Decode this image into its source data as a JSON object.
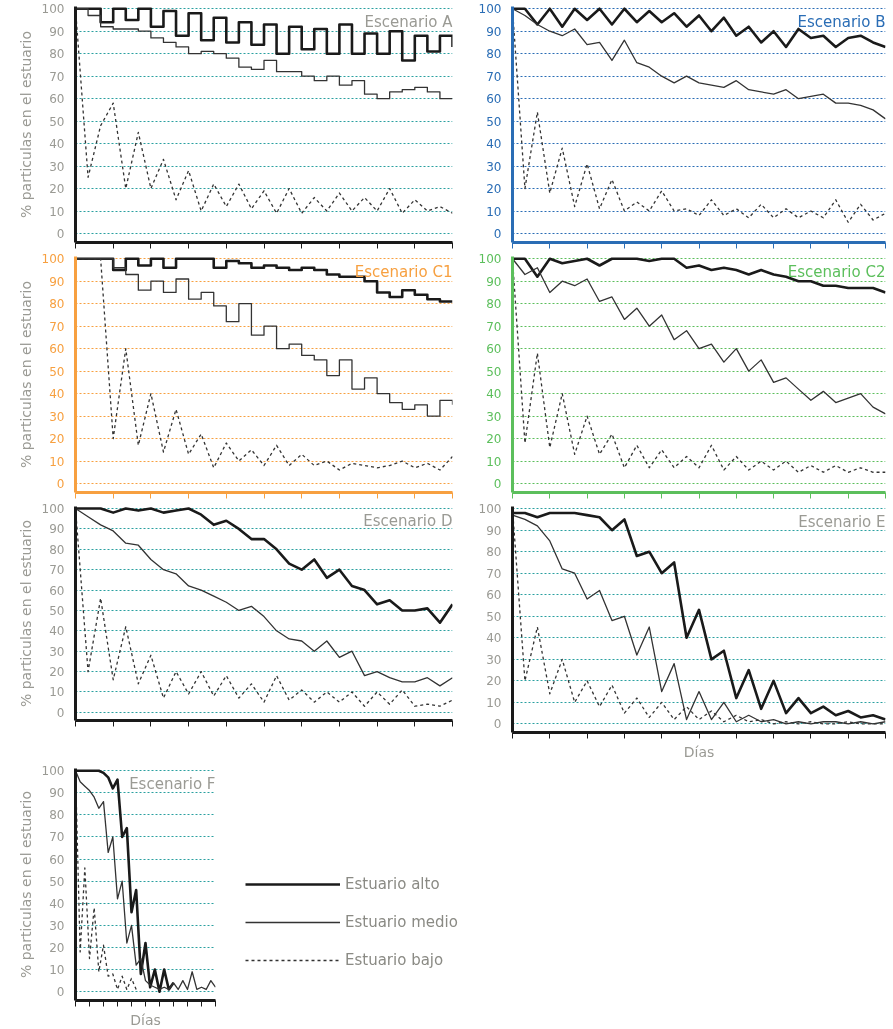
{
  "chart_data": [
    {
      "type": "line",
      "title": "Escenario A",
      "ylabel": "% particulas en el estuario",
      "categories": [
        null,
        null,
        null,
        null,
        null,
        null,
        null,
        null,
        null,
        null,
        null,
        null,
        null,
        null,
        null,
        null,
        null,
        null,
        null,
        null,
        null,
        null,
        null,
        null,
        null,
        null,
        null,
        null,
        null,
        null,
        null
      ],
      "ylim": [
        -4,
        101
      ],
      "yticks": [
        0,
        10,
        20,
        30,
        40,
        50,
        60,
        70,
        80,
        90,
        100
      ],
      "grid": "y",
      "series": [
        {
          "type": "step",
          "color": "#1a1a1a",
          "line_style": "solid",
          "values": [
            100,
            100,
            94,
            100,
            95,
            100,
            92,
            99,
            88,
            98,
            86,
            96,
            85,
            94,
            84,
            93,
            80,
            92,
            82,
            91,
            80,
            93,
            80,
            89,
            80,
            90,
            77,
            88,
            81,
            88,
            83
          ]
        },
        {
          "type": "step",
          "color": "#333333",
          "line_style": "solid",
          "values": [
            100,
            97,
            92,
            91,
            91,
            90,
            87,
            85,
            83,
            80,
            81,
            80,
            78,
            74,
            73,
            77,
            72,
            72,
            70,
            68,
            70,
            66,
            68,
            62,
            60,
            63,
            64,
            65,
            63,
            60,
            60
          ]
        },
        {
          "type": "line",
          "color": "#333333",
          "line_style": "dotted",
          "values": [
            100,
            25,
            48,
            58,
            20,
            45,
            20,
            33,
            15,
            28,
            10,
            22,
            12,
            22,
            11,
            19,
            9,
            20,
            9,
            16,
            10,
            18,
            10,
            16,
            10,
            20,
            9,
            15,
            10,
            12,
            9
          ]
        }
      ]
    },
    {
      "type": "line",
      "title": "Escenario B",
      "categories": [
        null,
        null,
        null,
        null,
        null,
        null,
        null,
        null,
        null,
        null,
        null,
        null,
        null,
        null,
        null,
        null,
        null,
        null,
        null,
        null,
        null,
        null,
        null,
        null,
        null,
        null,
        null,
        null,
        null,
        null,
        null
      ],
      "ylim": [
        -4,
        101
      ],
      "yticks": [
        0,
        10,
        20,
        30,
        40,
        50,
        60,
        70,
        80,
        90,
        100
      ],
      "grid": "y",
      "series": [
        {
          "type": "line",
          "color": "#1a1a1a",
          "line_style": "solid",
          "values": [
            100,
            100,
            93,
            100,
            92,
            100,
            95,
            100,
            93,
            100,
            94,
            99,
            94,
            98,
            92,
            97,
            90,
            96,
            88,
            92,
            85,
            90,
            83,
            91,
            87,
            88,
            83,
            87,
            88,
            85,
            83
          ]
        },
        {
          "type": "line",
          "color": "#333333",
          "line_style": "solid",
          "values": [
            100,
            97,
            93,
            90,
            88,
            91,
            84,
            85,
            77,
            86,
            76,
            74,
            70,
            67,
            70,
            67,
            66,
            65,
            68,
            64,
            63,
            62,
            64,
            60,
            61,
            62,
            58,
            58,
            57,
            55,
            51
          ]
        },
        {
          "type": "line",
          "color": "#333333",
          "line_style": "dotted",
          "values": [
            100,
            20,
            54,
            18,
            38,
            12,
            31,
            11,
            24,
            10,
            14,
            10,
            19,
            10,
            11,
            8,
            15,
            8,
            11,
            7,
            13,
            7,
            11,
            7,
            10,
            7,
            15,
            5,
            13,
            6,
            9
          ]
        }
      ]
    },
    {
      "type": "line",
      "title": "Escenario C1",
      "ylabel": "% particulas en el estuario",
      "categories": [
        null,
        null,
        null,
        null,
        null,
        null,
        null,
        null,
        null,
        null,
        null,
        null,
        null,
        null,
        null,
        null,
        null,
        null,
        null,
        null,
        null,
        null,
        null,
        null,
        null,
        null,
        null,
        null,
        null,
        null,
        null
      ],
      "ylim": [
        -4,
        101
      ],
      "yticks": [
        0,
        10,
        20,
        30,
        40,
        50,
        60,
        70,
        80,
        90,
        100
      ],
      "grid": "y",
      "series": [
        {
          "type": "step",
          "color": "#1a1a1a",
          "line_style": "solid",
          "values": [
            100,
            100,
            100,
            95,
            100,
            97,
            100,
            96,
            100,
            100,
            100,
            96,
            99,
            98,
            96,
            97,
            96,
            95,
            96,
            95,
            93,
            92,
            92,
            90,
            85,
            83,
            86,
            84,
            82,
            81,
            81
          ]
        },
        {
          "type": "step",
          "color": "#333333",
          "line_style": "solid",
          "values": [
            100,
            100,
            100,
            96,
            93,
            86,
            90,
            85,
            91,
            82,
            85,
            79,
            72,
            80,
            66,
            70,
            60,
            62,
            57,
            55,
            48,
            55,
            42,
            47,
            40,
            36,
            33,
            35,
            30,
            37,
            35
          ]
        },
        {
          "type": "line",
          "color": "#333333",
          "line_style": "dotted",
          "values": [
            100,
            100,
            100,
            20,
            60,
            17,
            40,
            14,
            33,
            13,
            22,
            7,
            18,
            10,
            15,
            8,
            17,
            8,
            13,
            8,
            10,
            6,
            9,
            8,
            7,
            8,
            10,
            7,
            9,
            6,
            12
          ]
        }
      ]
    },
    {
      "type": "line",
      "title": "Escenario C2",
      "categories": [
        null,
        null,
        null,
        null,
        null,
        null,
        null,
        null,
        null,
        null,
        null,
        null,
        null,
        null,
        null,
        null,
        null,
        null,
        null,
        null,
        null,
        null,
        null,
        null,
        null,
        null,
        null,
        null,
        null,
        null,
        null
      ],
      "ylim": [
        -4,
        101
      ],
      "yticks": [
        0,
        10,
        20,
        30,
        40,
        50,
        60,
        70,
        80,
        90,
        100
      ],
      "grid": "y",
      "series": [
        {
          "type": "line",
          "color": "#1a1a1a",
          "line_style": "solid",
          "values": [
            100,
            100,
            92,
            100,
            98,
            99,
            100,
            97,
            100,
            100,
            100,
            99,
            100,
            100,
            96,
            97,
            95,
            96,
            95,
            93,
            95,
            93,
            92,
            90,
            90,
            88,
            88,
            87,
            87,
            87,
            85
          ]
        },
        {
          "type": "line",
          "color": "#333333",
          "line_style": "solid",
          "values": [
            100,
            93,
            96,
            85,
            90,
            88,
            91,
            81,
            83,
            73,
            78,
            70,
            75,
            64,
            68,
            60,
            62,
            54,
            60,
            50,
            55,
            45,
            47,
            42,
            37,
            41,
            36,
            38,
            40,
            34,
            31
          ]
        },
        {
          "type": "line",
          "color": "#333333",
          "line_style": "dotted",
          "values": [
            100,
            18,
            58,
            16,
            40,
            13,
            30,
            13,
            22,
            7,
            17,
            7,
            15,
            7,
            12,
            7,
            17,
            6,
            12,
            6,
            10,
            6,
            10,
            5,
            8,
            5,
            8,
            5,
            7,
            5,
            5
          ]
        }
      ]
    },
    {
      "type": "line",
      "title": "Escenario D",
      "ylabel": "% particulas en el estuario",
      "categories": [
        null,
        null,
        null,
        null,
        null,
        null,
        null,
        null,
        null,
        null,
        null,
        null,
        null,
        null,
        null,
        null,
        null,
        null,
        null,
        null,
        null,
        null,
        null,
        null,
        null,
        null,
        null,
        null,
        null,
        null,
        null
      ],
      "ylim": [
        -4,
        101
      ],
      "yticks": [
        0,
        10,
        20,
        30,
        40,
        50,
        60,
        70,
        80,
        90,
        100
      ],
      "grid": "y",
      "series": [
        {
          "type": "line",
          "color": "#1a1a1a",
          "line_style": "solid",
          "values": [
            100,
            100,
            100,
            98,
            100,
            99,
            100,
            98,
            99,
            100,
            97,
            92,
            94,
            90,
            85,
            85,
            80,
            73,
            70,
            75,
            66,
            70,
            62,
            60,
            53,
            55,
            50,
            50,
            51,
            44,
            53
          ]
        },
        {
          "type": "line",
          "color": "#333333",
          "line_style": "solid",
          "values": [
            100,
            96,
            92,
            89,
            83,
            82,
            75,
            70,
            68,
            62,
            60,
            57,
            54,
            50,
            52,
            47,
            40,
            36,
            35,
            30,
            35,
            27,
            30,
            18,
            20,
            17,
            15,
            15,
            17,
            13,
            17
          ]
        },
        {
          "type": "line",
          "color": "#333333",
          "line_style": "dotted",
          "values": [
            100,
            20,
            56,
            16,
            42,
            14,
            28,
            7,
            20,
            9,
            20,
            8,
            18,
            7,
            14,
            5,
            18,
            6,
            11,
            5,
            10,
            5,
            10,
            3,
            10,
            4,
            11,
            3,
            4,
            3,
            6
          ]
        }
      ]
    },
    {
      "type": "line",
      "title": "Escenario E",
      "xlabel": "Días",
      "categories": [
        null,
        null,
        null,
        null,
        null,
        null,
        null,
        null,
        null,
        null,
        null,
        null,
        null,
        null,
        null,
        null,
        null,
        null,
        null,
        null,
        null,
        null,
        null,
        null,
        null,
        null,
        null,
        null,
        null,
        null,
        null
      ],
      "ylim": [
        -4,
        101
      ],
      "yticks": [
        0,
        10,
        20,
        30,
        40,
        50,
        60,
        70,
        80,
        90,
        100
      ],
      "grid": "y",
      "series": [
        {
          "type": "line",
          "color": "#1a1a1a",
          "line_style": "solid",
          "values": [
            98,
            98,
            96,
            98,
            98,
            98,
            97,
            96,
            90,
            95,
            78,
            80,
            70,
            75,
            40,
            53,
            30,
            34,
            12,
            25,
            7,
            20,
            5,
            12,
            5,
            8,
            4,
            6,
            3,
            4,
            2
          ]
        },
        {
          "type": "line",
          "color": "#333333",
          "line_style": "solid",
          "values": [
            97,
            95,
            92,
            85,
            72,
            70,
            58,
            62,
            48,
            50,
            32,
            45,
            15,
            28,
            2,
            15,
            2,
            10,
            1,
            4,
            1,
            2,
            0,
            1,
            0,
            1,
            1,
            0,
            1,
            0,
            1
          ]
        },
        {
          "type": "line",
          "color": "#333333",
          "line_style": "dotted",
          "values": [
            100,
            20,
            45,
            14,
            30,
            10,
            20,
            8,
            18,
            5,
            12,
            3,
            10,
            2,
            8,
            2,
            6,
            1,
            4,
            1,
            2,
            0,
            1,
            0,
            1,
            0,
            0,
            1,
            0,
            0,
            0
          ]
        }
      ]
    },
    {
      "type": "line",
      "title": "Escenario F",
      "ylabel": "% particulas en el estuario",
      "xlabel": "Días",
      "legend": "right",
      "categories": [
        null,
        null,
        null,
        null,
        null,
        null,
        null,
        null,
        null,
        null,
        null,
        null,
        null,
        null,
        null,
        null,
        null,
        null,
        null,
        null,
        null,
        null,
        null,
        null,
        null,
        null,
        null,
        null,
        null,
        null,
        null
      ],
      "ylim": [
        -4,
        101
      ],
      "yticks": [
        0,
        10,
        20,
        30,
        40,
        50,
        60,
        70,
        80,
        90,
        100
      ],
      "grid": "y",
      "series": [
        {
          "name": "Estuario alto",
          "type": "line",
          "color": "#1a1a1a",
          "line_style": "solid",
          "values": [
            100,
            100,
            100,
            100,
            100,
            100,
            99,
            97,
            92,
            96,
            70,
            74,
            36,
            46,
            8,
            22,
            2,
            10,
            0,
            10,
            1,
            4,
            null,
            null,
            null,
            null,
            null,
            null,
            null,
            null,
            null
          ]
        },
        {
          "name": "Estuario medio",
          "type": "line",
          "color": "#333333",
          "line_style": "solid",
          "values": [
            100,
            95,
            93,
            91,
            88,
            83,
            86,
            63,
            70,
            42,
            50,
            22,
            30,
            12,
            15,
            5,
            3,
            2,
            1,
            2,
            1,
            4,
            1,
            5,
            1,
            9,
            1,
            2,
            1,
            5,
            2
          ]
        },
        {
          "name": "Estuario bajo",
          "type": "line",
          "color": "#333333",
          "line_style": "dotted",
          "values": [
            100,
            18,
            56,
            15,
            38,
            9,
            21,
            7,
            8,
            1,
            7,
            1,
            6,
            1,
            null,
            null,
            null,
            null,
            null,
            null,
            null,
            null,
            null,
            null,
            null,
            null,
            null,
            null,
            null,
            null,
            null
          ]
        }
      ]
    }
  ]
}
